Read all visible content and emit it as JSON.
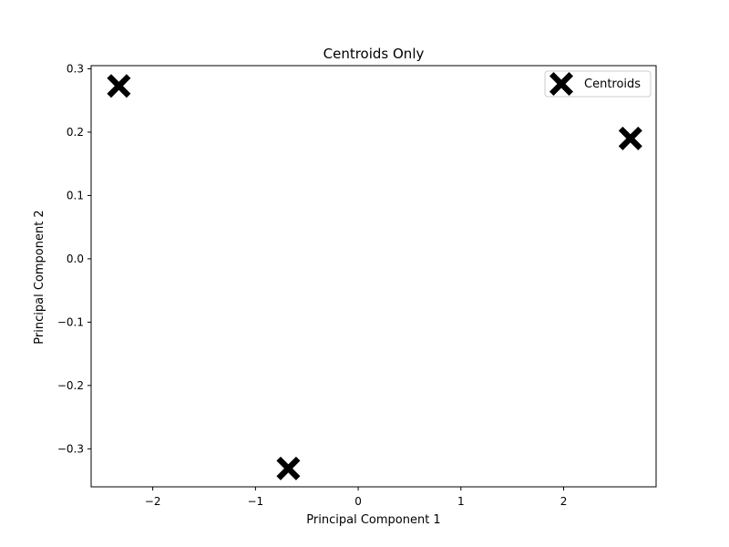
{
  "chart_data": {
    "type": "scatter",
    "title": "Centroids Only",
    "xlabel": "Principal Component 1",
    "ylabel": "Principal Component 2",
    "xlim": [
      -2.6,
      2.9
    ],
    "ylim": [
      -0.36,
      0.305
    ],
    "xticks": [
      -2,
      -1,
      0,
      1,
      2
    ],
    "xtick_labels": [
      "−2",
      "−1",
      "0",
      "1",
      "2"
    ],
    "yticks": [
      -0.3,
      -0.2,
      -0.1,
      0.0,
      0.1,
      0.2,
      0.3
    ],
    "ytick_labels": [
      "−0.3",
      "−0.2",
      "−0.1",
      "0.0",
      "0.1",
      "0.2",
      "0.3"
    ],
    "grid": false,
    "legend_position": "top-right",
    "series": [
      {
        "name": "Centroids",
        "marker": "X",
        "color": "#000000",
        "x": [
          -2.33,
          2.65,
          -0.68
        ],
        "y": [
          0.273,
          0.19,
          -0.331
        ]
      }
    ]
  }
}
